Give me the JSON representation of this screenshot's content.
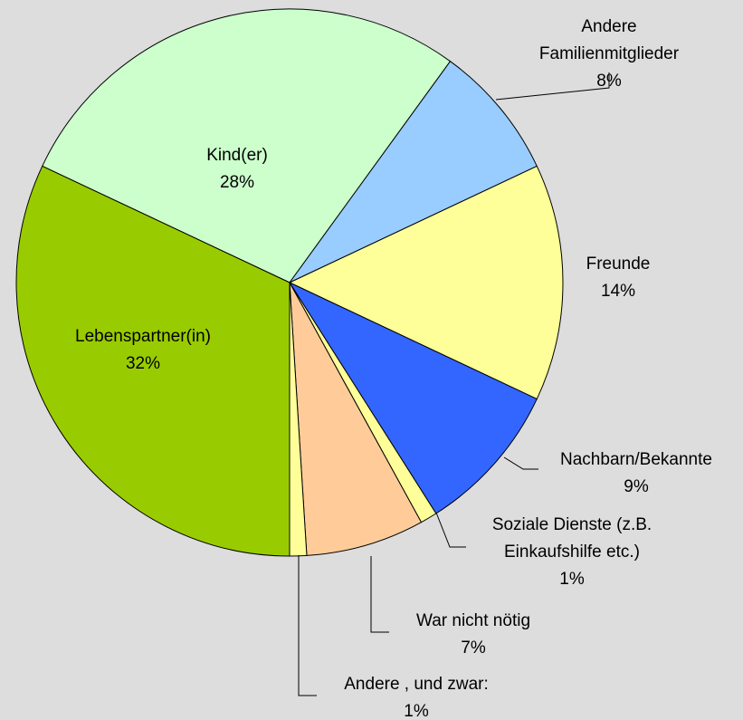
{
  "chart_data": {
    "type": "pie",
    "categories": [
      "Kind(er)",
      "Andere Familienmitglieder",
      "Freunde",
      "Nachbarn/Bekannte",
      "Soziale Dienste (z.B.\nEinkaufshilfe etc.)",
      "War nicht nötig",
      "Andere , und zwar:",
      "Lebenspartner(in)"
    ],
    "values": [
      28,
      8,
      14,
      9,
      1,
      7,
      1,
      32
    ],
    "value_labels": [
      "28%",
      "8%",
      "14%",
      "9%",
      "1%",
      "7%",
      "1%",
      "32%"
    ],
    "colors": [
      "#ccffcc",
      "#99ccff",
      "#ffff99",
      "#3366ff",
      "#ffff99",
      "#ffcc99",
      "#ffff99",
      "#99cc00"
    ]
  }
}
